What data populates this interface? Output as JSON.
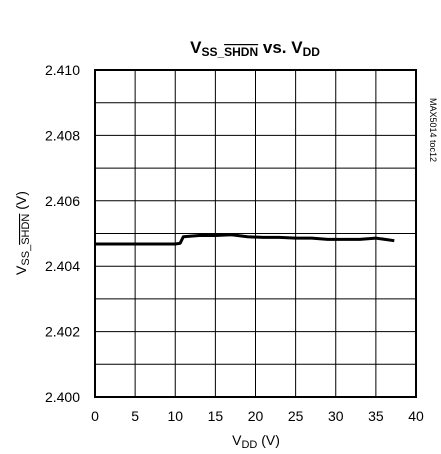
{
  "chart_data": {
    "type": "line",
    "title": {
      "v": "V",
      "ss_sub": "SS_",
      "shdn_sub": "SHDN",
      "vs": " vs. V",
      "dd_sub": "DD"
    },
    "xlabel": {
      "v": "V",
      "sub": "DD",
      "unit": " (V)"
    },
    "ylabel": {
      "v": "V",
      "sub1": "SS_",
      "sub2": "SHDN",
      "unit": " (V)"
    },
    "side_label": "MAX5014 toc12",
    "xlim": [
      0,
      40
    ],
    "ylim": [
      2.4,
      2.41
    ],
    "x_ticks": [
      "0",
      "5",
      "10",
      "15",
      "20",
      "25",
      "30",
      "35",
      "40"
    ],
    "y_ticks": [
      "2.400",
      "2.402",
      "2.404",
      "2.406",
      "2.408",
      "2.410"
    ],
    "grid": true,
    "series": [
      {
        "x": [
          0,
          5,
          10,
          10.6,
          11,
          13,
          15,
          17,
          19,
          21,
          23,
          25,
          27,
          29,
          31,
          33,
          35,
          37.3
        ],
        "y": [
          2.40468,
          2.40468,
          2.40468,
          2.4047,
          2.4049,
          2.40494,
          2.40494,
          2.40496,
          2.4049,
          2.40488,
          2.40488,
          2.40486,
          2.40486,
          2.40482,
          2.40482,
          2.40482,
          2.40486,
          2.40478
        ]
      }
    ]
  }
}
